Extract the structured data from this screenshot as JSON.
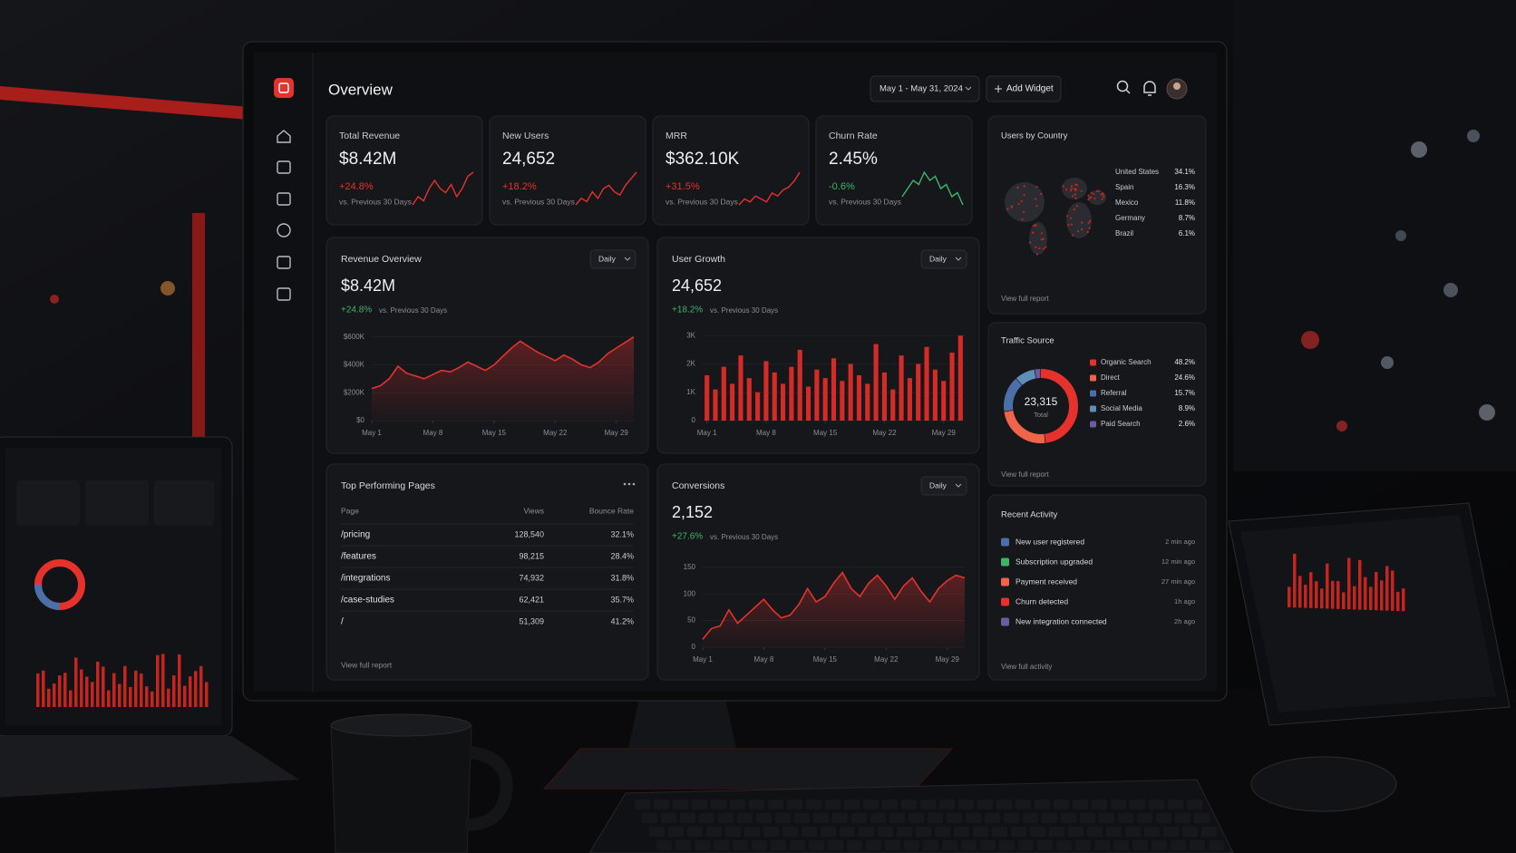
{
  "header": {
    "title": "Overview",
    "date_range": "May 1 - May 31, 2024",
    "add_widget": "Add Widget"
  },
  "kpis": [
    {
      "label": "Total Revenue",
      "value": "$8.42M",
      "change": "+24.8%",
      "compare": "vs. Previous 30 Days",
      "color": "#e5322d",
      "spark": [
        3,
        4,
        3.5,
        5,
        6,
        5,
        4.5,
        5.5,
        4,
        5,
        6.5,
        7
      ]
    },
    {
      "label": "New Users",
      "value": "24,652",
      "change": "+18.2%",
      "compare": "vs. Previous 30 Days",
      "color": "#e5322d",
      "spark": [
        2,
        3,
        2.5,
        4,
        3,
        4.5,
        5,
        4,
        3.5,
        5,
        6,
        7
      ]
    },
    {
      "label": "MRR",
      "value": "$362.10K",
      "change": "+31.5%",
      "compare": "vs. Previous 30 Days",
      "color": "#e5322d",
      "spark": [
        2,
        3,
        2.5,
        3.5,
        3,
        2.5,
        4,
        3.5,
        4.5,
        5,
        6,
        7.5
      ]
    },
    {
      "label": "Churn Rate",
      "value": "2.45%",
      "change": "-0.6%",
      "compare": "vs. Previous 30 Days",
      "color": "#3fb56b",
      "spark": [
        4,
        5,
        6,
        5.5,
        7,
        6,
        6.5,
        5,
        5.5,
        4,
        4.5,
        3
      ]
    }
  ],
  "revenue_overview": {
    "title": "Revenue Overview",
    "value": "$8.42M",
    "change": "+24.8%",
    "compare": "vs. Previous 30 Days",
    "change_color": "#3fb56b",
    "period": "Daily",
    "chart": {
      "type": "line",
      "color": "#e5322d",
      "x": [
        1,
        2,
        3,
        4,
        5,
        6,
        7,
        8,
        9,
        10,
        11,
        12,
        13,
        14,
        15,
        16,
        17,
        18,
        19,
        20,
        21,
        22,
        23,
        24,
        25,
        26,
        27,
        28,
        29,
        30,
        31
      ],
      "values": [
        230000,
        250000,
        300000,
        390000,
        340000,
        320000,
        300000,
        330000,
        360000,
        350000,
        380000,
        420000,
        390000,
        360000,
        400000,
        460000,
        520000,
        570000,
        530000,
        490000,
        460000,
        430000,
        470000,
        440000,
        400000,
        380000,
        420000,
        480000,
        520000,
        560000,
        600000
      ],
      "xlim": [
        1,
        31
      ],
      "ylim": [
        0,
        650000
      ],
      "xticks": [
        {
          "value": 1,
          "label": "May 1"
        },
        {
          "value": 8,
          "label": "May 8"
        },
        {
          "value": 15,
          "label": "May 15"
        },
        {
          "value": 22,
          "label": "May 22"
        },
        {
          "value": 29,
          "label": "May 29"
        }
      ],
      "yticks": [
        {
          "value": 0,
          "label": "$0"
        },
        {
          "value": 200000,
          "label": "$200K"
        },
        {
          "value": 400000,
          "label": "$400K"
        },
        {
          "value": 600000,
          "label": "$600K"
        }
      ],
      "grid": true
    }
  },
  "user_growth": {
    "title": "User Growth",
    "value": "24,652",
    "change": "+18.2%",
    "compare": "vs. Previous 30 Days",
    "change_color": "#3fb56b",
    "period": "Daily",
    "chart": {
      "type": "bar",
      "color": "#d42b26",
      "x": [
        1,
        2,
        3,
        4,
        5,
        6,
        7,
        8,
        9,
        10,
        11,
        12,
        13,
        14,
        15,
        16,
        17,
        18,
        19,
        20,
        21,
        22,
        23,
        24,
        25,
        26,
        27,
        28,
        29,
        30,
        31
      ],
      "values": [
        1600,
        1100,
        1900,
        1300,
        2300,
        1500,
        1000,
        2100,
        1700,
        1300,
        1900,
        2500,
        1200,
        1800,
        1500,
        2200,
        1400,
        2000,
        1600,
        1300,
        2700,
        1700,
        1100,
        2300,
        1500,
        2000,
        2600,
        1800,
        1400,
        2400,
        3000
      ],
      "xlim": [
        0.5,
        31.5
      ],
      "ylim": [
        0,
        3200
      ],
      "xticks": [
        {
          "value": 1,
          "label": "May 1"
        },
        {
          "value": 8,
          "label": "May 8"
        },
        {
          "value": 15,
          "label": "May 15"
        },
        {
          "value": 22,
          "label": "May 22"
        },
        {
          "value": 29,
          "label": "May 29"
        }
      ],
      "yticks": [
        0,
        {
          "value": 1000,
          "label": "1K"
        },
        {
          "value": 2000,
          "label": "2K"
        },
        {
          "value": 3000,
          "label": "3K"
        }
      ],
      "grid": true
    }
  },
  "conversions": {
    "title": "Conversions",
    "value": "2,152",
    "change": "+27.6%",
    "compare": "vs. Previous 30 Days",
    "change_color": "#3fb56b",
    "period": "Daily",
    "chart": {
      "type": "line",
      "color": "#e5322d",
      "x": [
        1,
        2,
        3,
        4,
        5,
        6,
        7,
        8,
        9,
        10,
        11,
        12,
        13,
        14,
        15,
        16,
        17,
        18,
        19,
        20,
        21,
        22,
        23,
        24,
        25,
        26,
        27,
        28,
        29,
        30,
        31
      ],
      "values": [
        15,
        35,
        40,
        70,
        45,
        60,
        75,
        90,
        70,
        55,
        60,
        80,
        110,
        85,
        95,
        120,
        140,
        110,
        95,
        120,
        135,
        115,
        90,
        115,
        130,
        105,
        85,
        110,
        125,
        135,
        130
      ],
      "xlim": [
        1,
        31
      ],
      "ylim": [
        0,
        170
      ],
      "xticks": [
        {
          "value": 1,
          "label": "May 1"
        },
        {
          "value": 8,
          "label": "May 8"
        },
        {
          "value": 15,
          "label": "May 15"
        },
        {
          "value": 22,
          "label": "May 22"
        },
        {
          "value": 29,
          "label": "May 29"
        }
      ],
      "yticks": [
        0,
        50,
        100,
        150
      ],
      "grid": true
    }
  },
  "top_pages": {
    "title": "Top Performing Pages",
    "columns": [
      "Page",
      "Views",
      "Bounce Rate"
    ],
    "rows": [
      [
        "/pricing",
        "128,540",
        "32.1%"
      ],
      [
        "/features",
        "98,215",
        "28.4%"
      ],
      [
        "/integrations",
        "74,932",
        "31.8%"
      ],
      [
        "/case-studies",
        "62,421",
        "35.7%"
      ],
      [
        "/",
        "51,309",
        "41.2%"
      ]
    ],
    "link": "View full report"
  },
  "users_by_country": {
    "title": "Users by Country",
    "rows": [
      [
        "United States",
        "34.1%"
      ],
      [
        "Spain",
        "16.3%"
      ],
      [
        "Mexico",
        "11.8%"
      ],
      [
        "Germany",
        "8.7%"
      ],
      [
        "Brazil",
        "6.1%"
      ]
    ],
    "link": "View full report"
  },
  "traffic_source": {
    "title": "Traffic Source",
    "total": "23,315",
    "total_label": "Total",
    "link": "View full report",
    "chart": {
      "type": "donut",
      "categories": [
        "Organic Search",
        "Direct",
        "Referral",
        "Social Media",
        "Paid Search"
      ],
      "values": [
        48.2,
        24.6,
        15.7,
        8.9,
        2.6
      ],
      "value_labels": [
        "48.2%",
        "24.6%",
        "15.7%",
        "8.9%",
        "2.6%"
      ],
      "colors": [
        "#e5322d",
        "#f0654a",
        "#4b6fa8",
        "#5f8fb8",
        "#6c5ba0"
      ]
    }
  },
  "recent_activity": {
    "title": "Recent Activity",
    "items": [
      {
        "text": "New user registered",
        "time": "2 min ago",
        "color": "#4b6fa8"
      },
      {
        "text": "Subscription upgraded",
        "time": "12 min ago",
        "color": "#3fb56b"
      },
      {
        "text": "Payment received",
        "time": "27 min ago",
        "color": "#f0654a"
      },
      {
        "text": "Churn detected",
        "time": "1h ago",
        "color": "#e5322d"
      },
      {
        "text": "New integration connected",
        "time": "2h ago",
        "color": "#6c5ba0"
      }
    ],
    "link": "View full activity"
  }
}
